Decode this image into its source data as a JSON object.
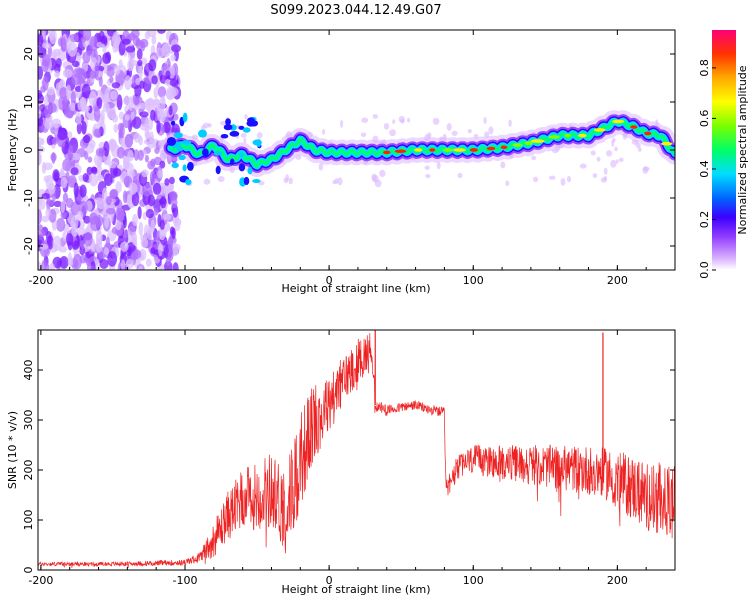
{
  "title": "S099.2023.044.12.49.G07",
  "chart_data": [
    {
      "type": "heatmap",
      "xlabel": "Height of straight line (km)",
      "ylabel": "Frequency (Hz)",
      "xlim": [
        -202,
        240
      ],
      "ylim": [
        -25,
        25
      ],
      "xticks": [
        -200,
        -100,
        0,
        100,
        200
      ],
      "yticks": [
        -20,
        -10,
        0,
        10,
        20
      ],
      "colorbar": {
        "label": "Normalized spectral amplitude",
        "range": [
          0.0,
          0.95
        ],
        "ticks": [
          0.0,
          0.2,
          0.4,
          0.6,
          0.8
        ],
        "colormap": [
          "#ffffff",
          "#d9b0ff",
          "#8f3bff",
          "#3b00ff",
          "#0066ff",
          "#00ddff",
          "#00ff66",
          "#7aff00",
          "#ffff00",
          "#ffaa00",
          "#ff3300",
          "#ff0077"
        ]
      },
      "ridge": {
        "description_points_x": [
          -110,
          -100,
          -90,
          -80,
          -70,
          -60,
          -50,
          -40,
          -30,
          -20,
          -10,
          0,
          20,
          40,
          60,
          80,
          100,
          120,
          140,
          160,
          180,
          200,
          210,
          220,
          230,
          240
        ],
        "frequency_hz": [
          0,
          1,
          -1,
          1,
          -2,
          -1,
          -3,
          -2,
          0,
          2,
          0,
          -0.5,
          -0.5,
          -0.5,
          0,
          0,
          0,
          0.5,
          1.5,
          3,
          3,
          6,
          5,
          3.5,
          3,
          -1
        ]
      },
      "noise_region": [
        -202,
        -105
      ]
    },
    {
      "type": "line",
      "xlabel": "Height of straight line (km)",
      "ylabel": "SNR (10 * v/v)",
      "xlim": [
        -202,
        240
      ],
      "ylim": [
        0,
        480
      ],
      "xticks": [
        -200,
        -100,
        0,
        100,
        200
      ],
      "yticks": [
        0,
        100,
        200,
        300,
        400
      ],
      "color": "#ee2222",
      "series": [
        {
          "x": [
            -202,
            -150,
            -100,
            -90,
            -80,
            -70,
            -60,
            -50,
            -40,
            -30,
            -20,
            -10,
            0,
            10,
            20,
            30,
            32,
            40,
            50,
            60,
            70,
            80,
            81,
            90,
            100,
            120,
            140,
            160,
            180,
            190,
            200,
            220,
            240
          ],
          "values": [
            12,
            12,
            15,
            25,
            60,
            110,
            140,
            150,
            160,
            120,
            220,
            300,
            330,
            380,
            420,
            440,
            330,
            320,
            325,
            330,
            320,
            315,
            160,
            210,
            220,
            215,
            210,
            205,
            200,
            195,
            180,
            150,
            130
          ],
          "noise_amplitude": [
            4,
            4,
            6,
            10,
            35,
            50,
            60,
            70,
            80,
            90,
            100,
            80,
            60,
            50,
            45,
            40,
            15,
            10,
            10,
            10,
            10,
            10,
            20,
            25,
            30,
            35,
            40,
            45,
            50,
            50,
            60,
            70,
            80
          ],
          "spikes": [
            {
              "x": 190,
              "y": 475
            },
            {
              "x": 32,
              "y": 480
            }
          ]
        }
      ]
    }
  ]
}
